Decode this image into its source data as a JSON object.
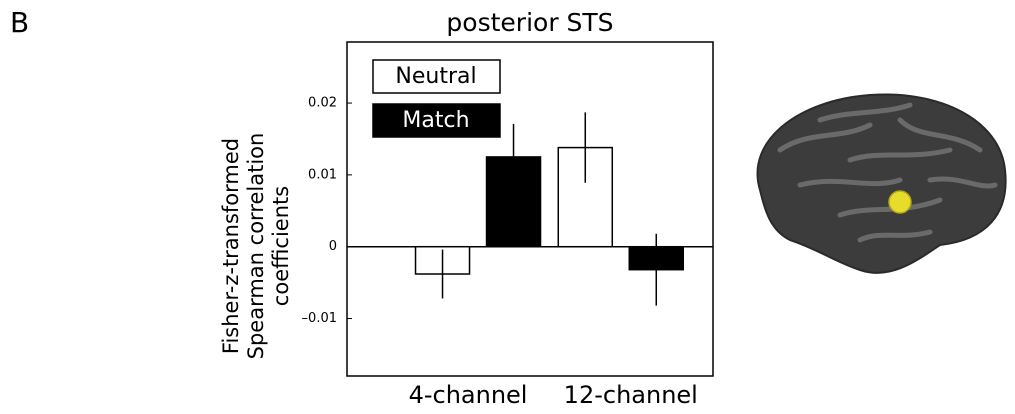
{
  "panel_label": "B",
  "chart_data": {
    "type": "bar",
    "title": "posterior STS",
    "ylabel": [
      "Fisher-z-transformed",
      "Spearman correlation",
      "coefficients"
    ],
    "categories": [
      "4-channel",
      "12-channel"
    ],
    "series": [
      {
        "name": "Neutral",
        "color": "#ffffff",
        "values": [
          -0.0038,
          0.0138
        ],
        "errors": [
          0.0034,
          0.0049
        ]
      },
      {
        "name": "Match",
        "color": "#000000",
        "values": [
          0.0125,
          -0.0032
        ],
        "errors": [
          0.0046,
          0.005
        ]
      }
    ],
    "ylim": [
      -0.018,
      0.0285
    ],
    "yticks": [
      {
        "value": -0.01,
        "label": "–0.01"
      },
      0,
      0.01,
      0.02
    ],
    "grid": false,
    "legend": "upper left"
  }
}
